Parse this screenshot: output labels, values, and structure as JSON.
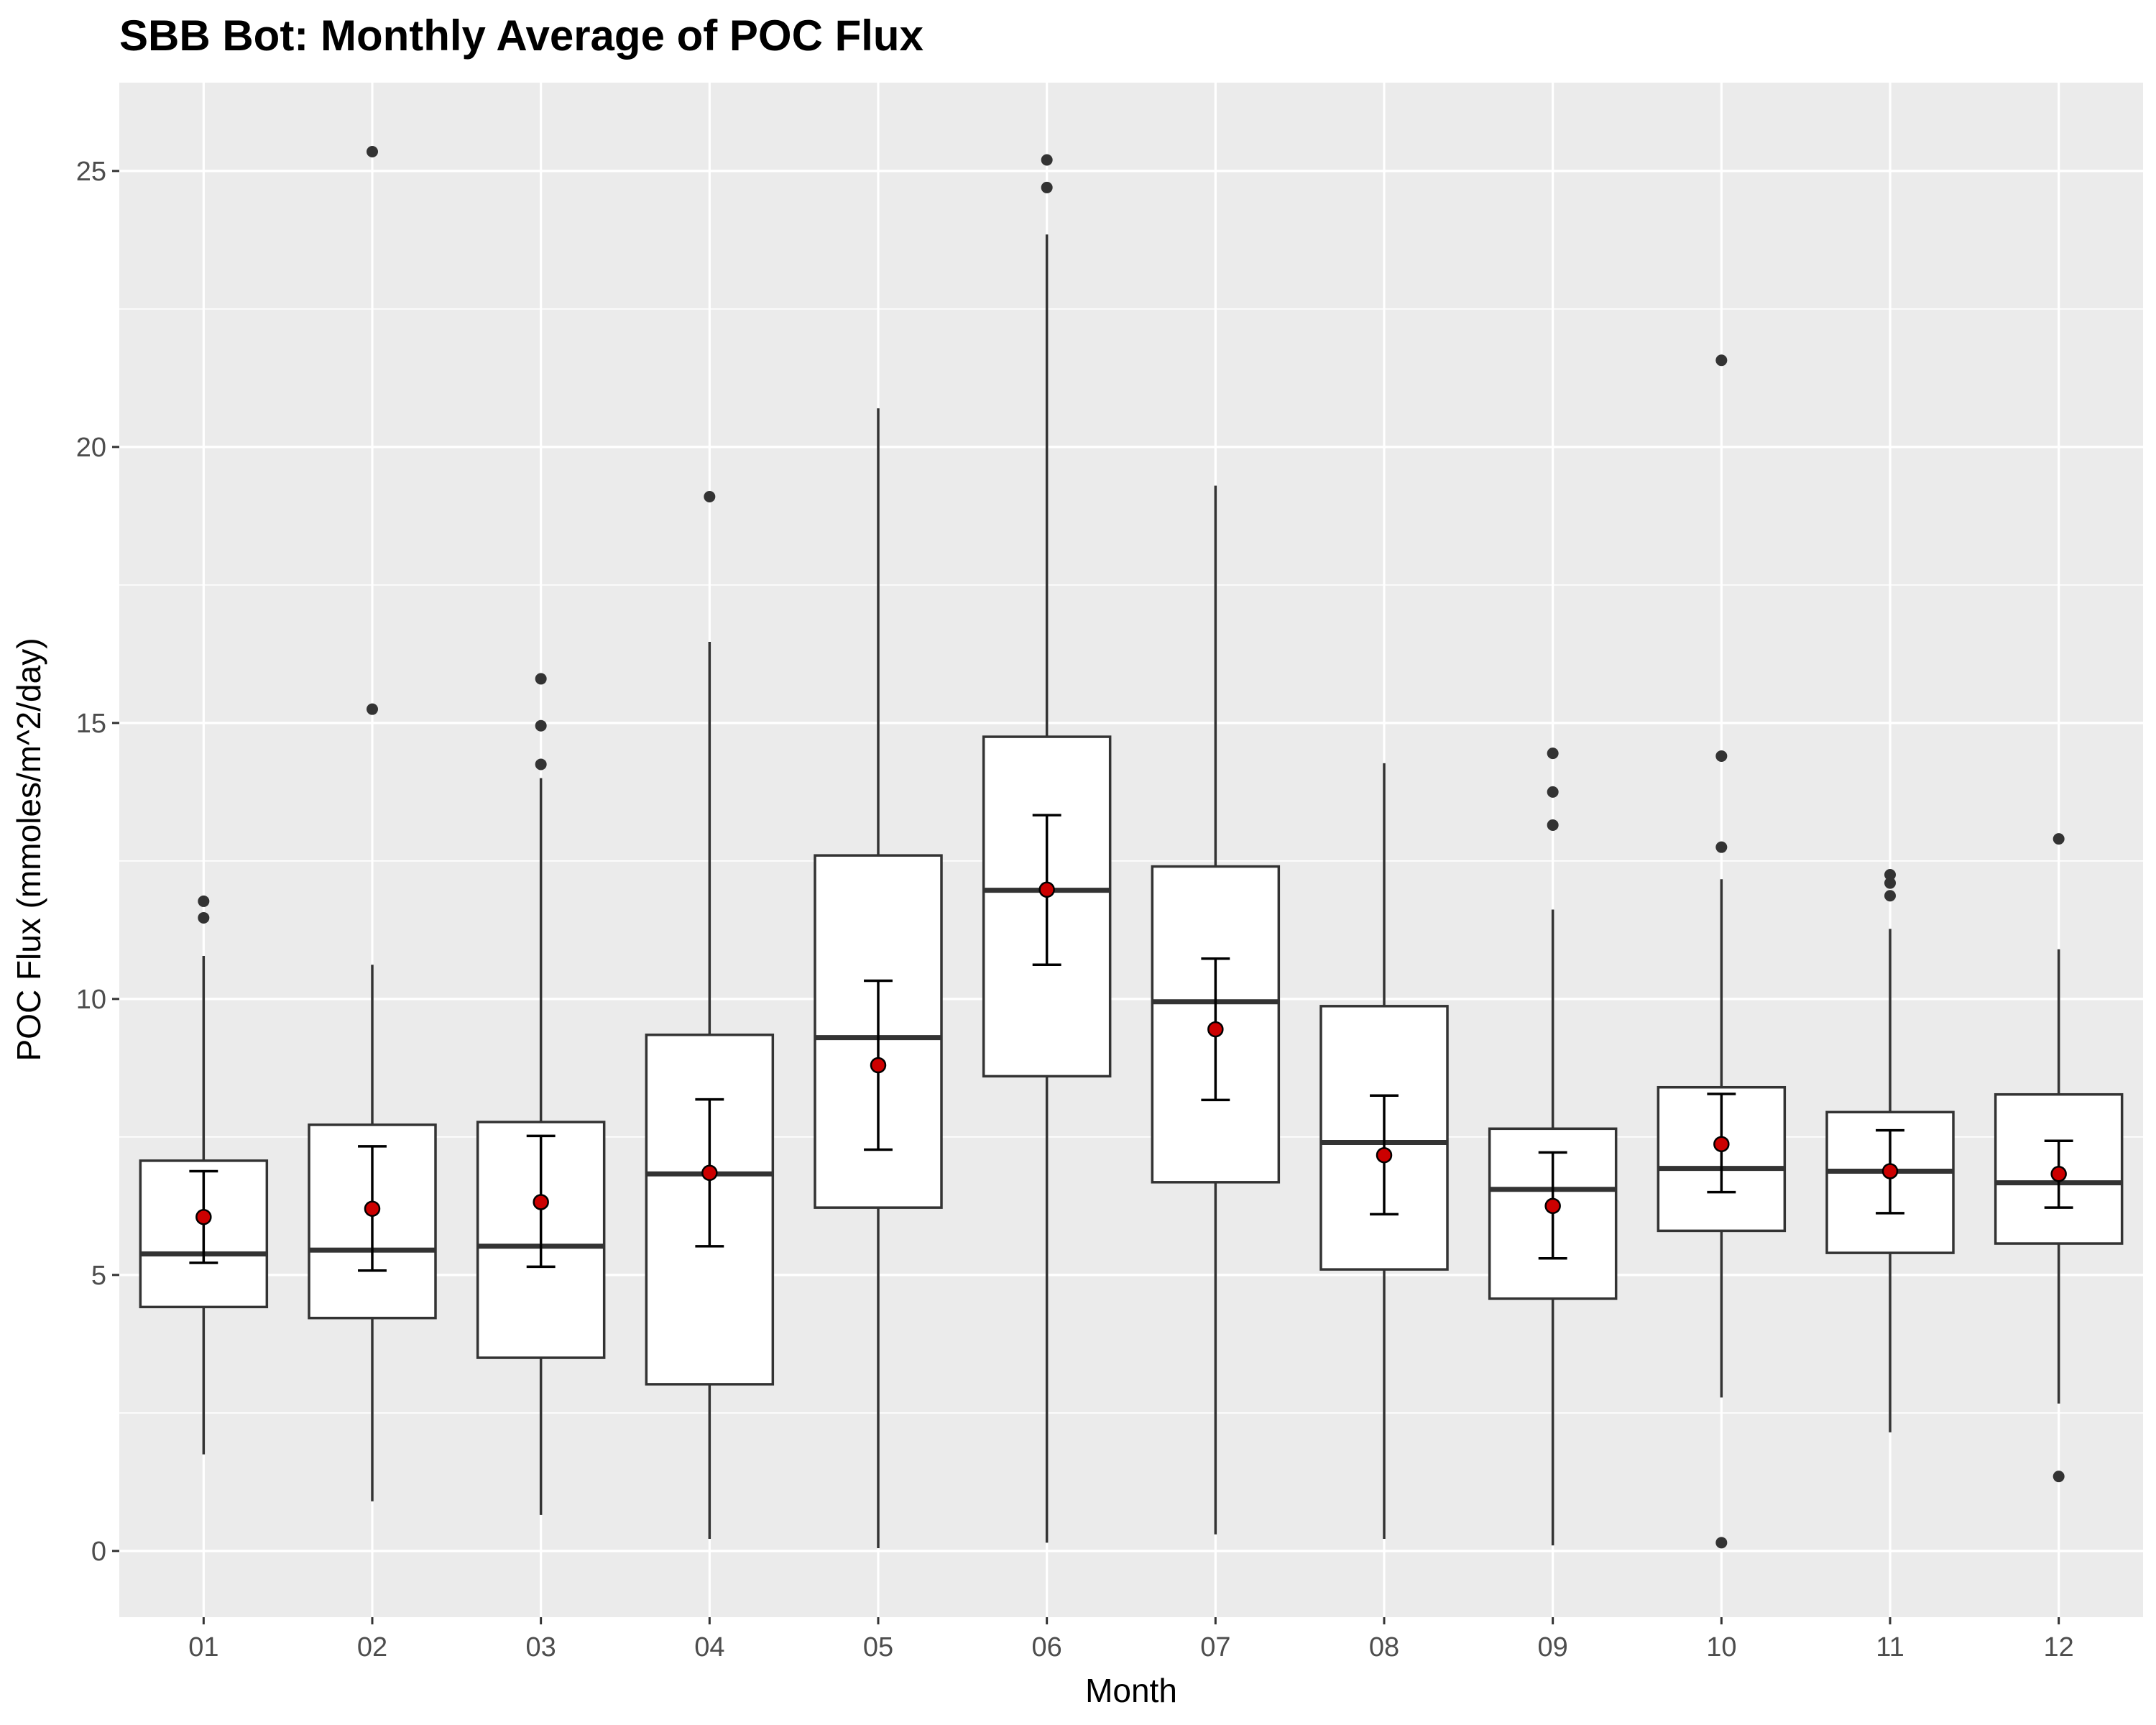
{
  "chart_data": {
    "type": "boxplot",
    "title": "SBB Bot: Monthly Average of POC Flux",
    "xlabel": "Month",
    "ylabel": "POC Flux (mmoles/m^2/day)",
    "ylim": [
      -1.2,
      26.6
    ],
    "yticks": [
      0,
      5,
      10,
      15,
      20,
      25
    ],
    "grid": true,
    "categories": [
      "01",
      "02",
      "03",
      "04",
      "05",
      "06",
      "07",
      "08",
      "09",
      "10",
      "11",
      "12"
    ],
    "boxes": [
      {
        "month": "01",
        "whisker_low": 1.75,
        "q1": 4.42,
        "median": 5.38,
        "q3": 7.07,
        "whisker_high": 10.78,
        "outliers": [
          11.47,
          11.77
        ],
        "mean": 6.05,
        "ci_low": 5.22,
        "ci_high": 6.88
      },
      {
        "month": "02",
        "whisker_low": 0.9,
        "q1": 4.22,
        "median": 5.45,
        "q3": 7.72,
        "whisker_high": 10.62,
        "outliers": [
          15.25,
          25.35
        ],
        "mean": 6.2,
        "ci_low": 5.08,
        "ci_high": 7.33
      },
      {
        "month": "03",
        "whisker_low": 0.65,
        "q1": 3.5,
        "median": 5.52,
        "q3": 7.77,
        "whisker_high": 14.0,
        "outliers": [
          14.25,
          14.95,
          15.8
        ],
        "mean": 6.32,
        "ci_low": 5.15,
        "ci_high": 7.52
      },
      {
        "month": "04",
        "whisker_low": 0.22,
        "q1": 3.02,
        "median": 6.83,
        "q3": 9.35,
        "whisker_high": 16.47,
        "outliers": [
          19.1
        ],
        "mean": 6.85,
        "ci_low": 5.52,
        "ci_high": 8.18
      },
      {
        "month": "05",
        "whisker_low": 0.05,
        "q1": 6.22,
        "median": 9.3,
        "q3": 12.6,
        "whisker_high": 20.7,
        "outliers": [],
        "mean": 8.8,
        "ci_low": 7.27,
        "ci_high": 10.33
      },
      {
        "month": "06",
        "whisker_low": 0.15,
        "q1": 8.6,
        "median": 11.97,
        "q3": 14.75,
        "whisker_high": 23.85,
        "outliers": [
          24.7,
          25.2
        ],
        "mean": 11.98,
        "ci_low": 10.62,
        "ci_high": 13.33
      },
      {
        "month": "07",
        "whisker_low": 0.3,
        "q1": 6.68,
        "median": 9.95,
        "q3": 12.4,
        "whisker_high": 19.3,
        "outliers": [],
        "mean": 9.45,
        "ci_low": 8.17,
        "ci_high": 10.73
      },
      {
        "month": "08",
        "whisker_low": 0.22,
        "q1": 5.1,
        "median": 7.4,
        "q3": 9.87,
        "whisker_high": 14.27,
        "outliers": [],
        "mean": 7.17,
        "ci_low": 6.1,
        "ci_high": 8.25
      },
      {
        "month": "09",
        "whisker_low": 0.1,
        "q1": 4.57,
        "median": 6.55,
        "q3": 7.65,
        "whisker_high": 11.62,
        "outliers": [
          13.15,
          13.75,
          14.45
        ],
        "mean": 6.25,
        "ci_low": 5.3,
        "ci_high": 7.22
      },
      {
        "month": "10",
        "whisker_low": 2.78,
        "q1": 5.8,
        "median": 6.93,
        "q3": 8.4,
        "whisker_high": 12.17,
        "outliers": [
          0.15,
          12.75,
          14.4,
          21.57
        ],
        "mean": 7.37,
        "ci_low": 6.5,
        "ci_high": 8.28
      },
      {
        "month": "11",
        "whisker_low": 2.15,
        "q1": 5.4,
        "median": 6.88,
        "q3": 7.95,
        "whisker_high": 11.27,
        "outliers": [
          11.87,
          12.1,
          12.25
        ],
        "mean": 6.88,
        "ci_low": 6.12,
        "ci_high": 7.62
      },
      {
        "month": "12",
        "whisker_low": 2.67,
        "q1": 5.57,
        "median": 6.67,
        "q3": 8.27,
        "whisker_high": 10.9,
        "outliers": [
          1.35,
          12.9
        ],
        "mean": 6.83,
        "ci_low": 6.22,
        "ci_high": 7.43
      }
    ],
    "colors": {
      "panel_background": "#ebebeb",
      "gridline": "#ffffff",
      "box_fill": "#ffffff",
      "box_stroke": "#333333",
      "mean_point": "#cc0000",
      "error_bar": "#000000",
      "outlier_point": "#333333"
    }
  }
}
